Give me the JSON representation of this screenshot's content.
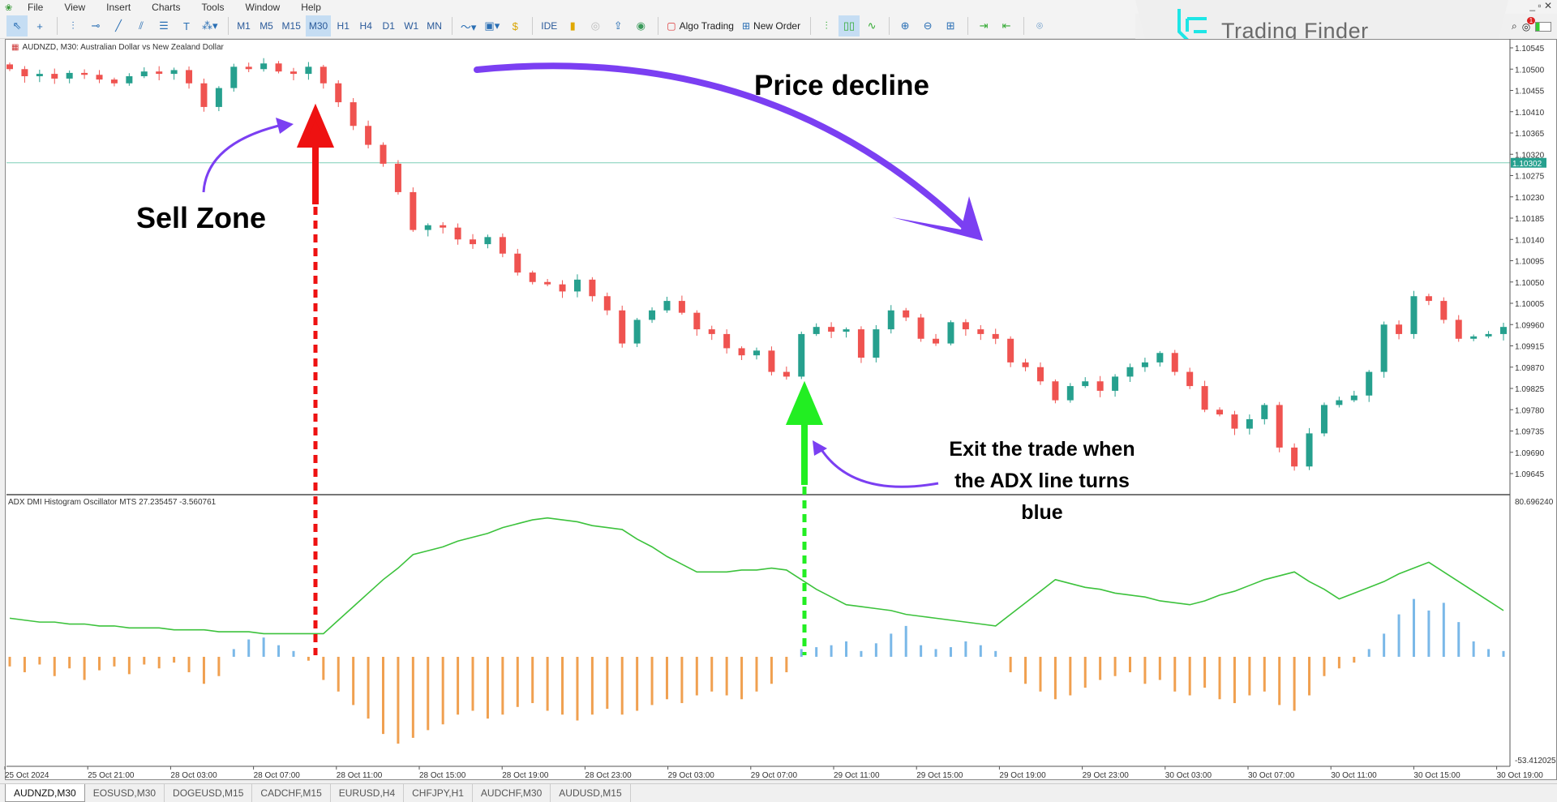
{
  "menu": [
    "File",
    "View",
    "Insert",
    "Charts",
    "Tools",
    "Window",
    "Help"
  ],
  "toolbar": {
    "timeframes": [
      "M1",
      "M5",
      "M15",
      "M30",
      "H1",
      "H4",
      "D1",
      "W1",
      "MN"
    ],
    "active_timeframe": "M30",
    "ide": "IDE",
    "algo": "Algo Trading",
    "new_order": "New Order",
    "notifications": "1"
  },
  "brand": {
    "name": "Trading Finder",
    "color": "#1ee6e6"
  },
  "chart": {
    "title": "AUDNZD, M30:  Australian Dollar vs New Zealand Dollar",
    "indicator_title": "ADX DMI Histogram Oscillator MTS 27.235457 -3.560761",
    "current_price": "1.10302"
  },
  "chart_data": [
    {
      "type": "candlestick",
      "symbol": "AUDNZD",
      "timeframe": "M30",
      "y_ticks": [
        "1.10545",
        "1.10500",
        "1.10455",
        "1.10410",
        "1.10365",
        "1.10320",
        "1.10275",
        "1.10230",
        "1.10185",
        "1.10140",
        "1.10095",
        "1.10050",
        "1.10005",
        "1.09960",
        "1.09915",
        "1.09870",
        "1.09825",
        "1.09780",
        "1.09735",
        "1.09690",
        "1.09645"
      ],
      "ylim": [
        1.09645,
        1.10545
      ],
      "hline": 1.10302,
      "up_color": "#26a08e",
      "down_color": "#ef5350",
      "closes": [
        1.105,
        1.10485,
        1.1049,
        1.1048,
        1.10492,
        1.10488,
        1.10478,
        1.1047,
        1.10485,
        1.10495,
        1.1049,
        1.10498,
        1.1047,
        1.1042,
        1.1046,
        1.10505,
        1.105,
        1.10512,
        1.10495,
        1.1049,
        1.10505,
        1.1047,
        1.1043,
        1.1038,
        1.1034,
        1.103,
        1.1024,
        1.1016,
        1.1017,
        1.10165,
        1.1014,
        1.1013,
        1.10145,
        1.1011,
        1.1007,
        1.1005,
        1.10045,
        1.1003,
        1.10055,
        1.1002,
        1.0999,
        1.0992,
        1.0997,
        1.0999,
        1.1001,
        1.09985,
        1.0995,
        1.0994,
        1.0991,
        1.09895,
        1.09905,
        1.0986,
        1.0985,
        1.0994,
        1.09955,
        1.09945,
        1.0995,
        1.0989,
        1.0995,
        1.0999,
        1.09975,
        1.0993,
        1.0992,
        1.09965,
        1.0995,
        1.0994,
        1.0993,
        1.0988,
        1.0987,
        1.0984,
        1.098,
        1.0983,
        1.0984,
        1.0982,
        1.0985,
        1.0987,
        1.0988,
        1.099,
        1.0986,
        1.0983,
        1.0978,
        1.0977,
        1.0974,
        1.0976,
        1.0979,
        1.097,
        1.0966,
        1.0973,
        1.0979,
        1.098,
        1.0981,
        1.0986,
        1.0996,
        1.0994,
        1.1002,
        1.1001,
        1.0997,
        1.0993,
        1.09935,
        1.0994,
        1.09955
      ],
      "x_ticks": [
        "25 Oct 2024",
        "25 Oct 21:00",
        "28 Oct 03:00",
        "28 Oct 07:00",
        "28 Oct 11:00",
        "28 Oct 15:00",
        "28 Oct 19:00",
        "28 Oct 23:00",
        "29 Oct 03:00",
        "29 Oct 07:00",
        "29 Oct 11:00",
        "29 Oct 15:00",
        "29 Oct 19:00",
        "29 Oct 23:00",
        "30 Oct 03:00",
        "30 Oct 07:00",
        "30 Oct 11:00",
        "30 Oct 15:00",
        "30 Oct 19:00"
      ]
    },
    {
      "type": "line+bar",
      "name": "ADX DMI Histogram Oscillator MTS",
      "ylim": [
        -53.412025,
        80.69624
      ],
      "y_ticks": [
        "80.696240",
        "-53.412025"
      ],
      "adx_color": "#3cc23c",
      "pos_color": "#7ab8e8",
      "neg_color": "#f0a050",
      "adx": [
        20,
        19,
        18,
        18,
        17,
        17,
        16,
        16,
        15,
        15,
        15,
        14,
        14,
        14,
        13,
        13,
        13,
        12,
        12,
        12,
        12,
        12,
        19,
        26,
        33,
        40,
        46,
        53,
        55,
        57,
        60,
        62,
        64,
        67,
        69,
        71,
        72,
        71,
        70,
        68,
        67,
        66,
        61,
        57,
        52,
        48,
        44,
        44,
        44,
        45,
        45,
        46,
        45,
        40,
        35,
        31,
        27,
        26,
        25,
        24,
        22,
        21,
        20,
        19,
        18,
        17,
        16,
        22,
        28,
        34,
        40,
        38,
        36,
        35,
        33,
        32,
        31,
        29,
        28,
        27,
        29,
        32,
        34,
        37,
        40,
        42,
        44,
        39,
        35,
        30,
        33,
        36,
        39,
        43,
        46,
        49,
        44,
        39,
        34,
        29,
        24
      ],
      "histogram": [
        -5,
        -8,
        -4,
        -10,
        -6,
        -12,
        -7,
        -5,
        -9,
        -4,
        -6,
        -3,
        -8,
        -14,
        -10,
        4,
        9,
        10,
        6,
        3,
        -2,
        -12,
        -18,
        -25,
        -32,
        -40,
        -45,
        -42,
        -38,
        -35,
        -30,
        -28,
        -32,
        -30,
        -26,
        -24,
        -28,
        -30,
        -33,
        -30,
        -27,
        -30,
        -28,
        -25,
        -22,
        -24,
        -20,
        -18,
        -20,
        -22,
        -18,
        -14,
        -8,
        4,
        5,
        6,
        8,
        3,
        7,
        12,
        16,
        6,
        4,
        5,
        8,
        6,
        3,
        -8,
        -14,
        -18,
        -22,
        -20,
        -16,
        -12,
        -10,
        -8,
        -14,
        -12,
        -18,
        -20,
        -16,
        -22,
        -24,
        -20,
        -18,
        -25,
        -28,
        -20,
        -10,
        -6,
        -3,
        4,
        12,
        22,
        30,
        24,
        28,
        18,
        8,
        4,
        3
      ]
    }
  ],
  "annotations": {
    "price_decline": "Price decline",
    "sell_zone": "Sell Zone",
    "exit_line1": "Exit the trade when",
    "exit_line2": "the ADX line turns",
    "exit_line3": "blue",
    "arrow_color": "#7b3ff2",
    "sell_color": "#ee1111",
    "exit_color": "#22ee22"
  },
  "tabs": [
    "AUDNZD,M30",
    "EOSUSD,M30",
    "DOGEUSD,M15",
    "CADCHF,M15",
    "EURUSD,H4",
    "CHFJPY,H1",
    "AUDCHF,M30",
    "AUDUSD,M15"
  ]
}
